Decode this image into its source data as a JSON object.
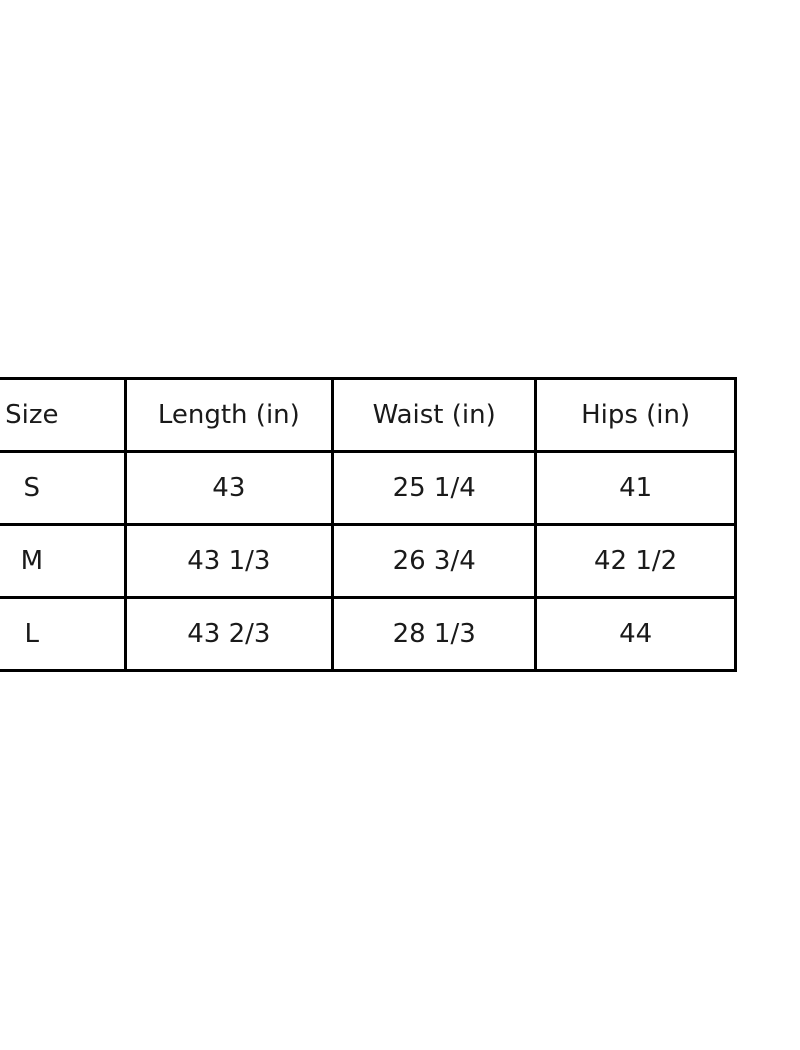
{
  "chart_data": {
    "type": "table",
    "title": "",
    "columns": [
      "Size",
      "Length (in)",
      "Waist (in)",
      "Hips (in)"
    ],
    "rows": [
      [
        "S",
        "43",
        "25 1/4",
        "41"
      ],
      [
        "M",
        "43 1/3",
        "26 3/4",
        "42 1/2"
      ],
      [
        "L",
        "43 2/3",
        "28 1/3",
        "44"
      ]
    ],
    "layout": {
      "background": "#ffffff",
      "line_color": "#000000",
      "text_color": "#1a1a1a",
      "clipped_left": true,
      "clipped_right": true,
      "grid": "all-cell-borders"
    }
  }
}
